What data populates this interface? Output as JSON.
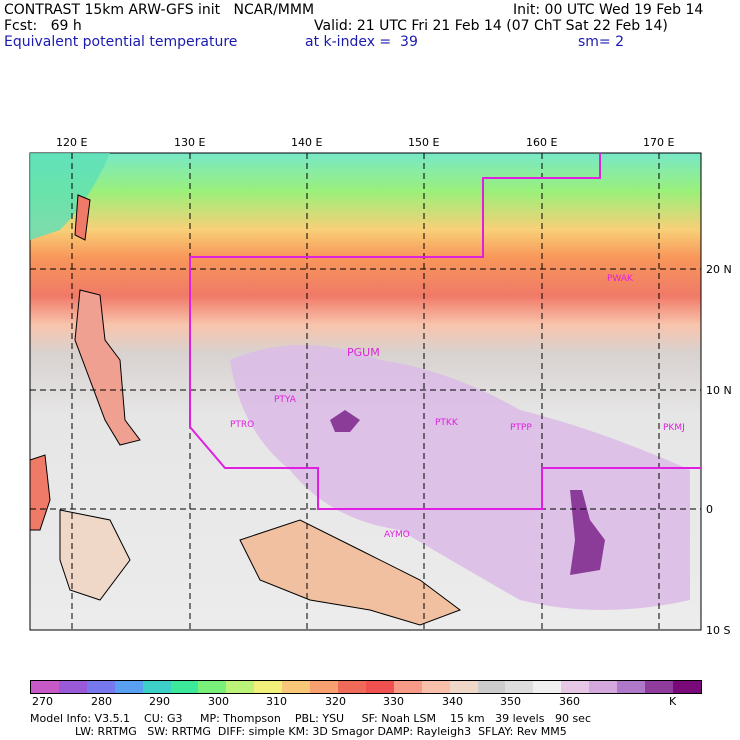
{
  "header": {
    "line1_left": "CONTRAST 15km ARW-GFS init   NCAR/MMM",
    "line1_right": "Init: 00 UTC Wed 19 Feb 14",
    "line2_left": "Fcst:   69 h",
    "line2_right": "Valid: 21 UTC Fri 21 Feb 14 (07 ChT Sat 22 Feb 14)",
    "line3_left": "Equivalent potential temperature",
    "line3_mid": "at k-index =  39",
    "line3_right": "sm= 2"
  },
  "map": {
    "lon_labels": [
      "120 E",
      "130 E",
      "140 E",
      "150 E",
      "160 E",
      "170 E"
    ],
    "lat_labels": [
      "20 N",
      "10 N",
      "0",
      "10 S"
    ],
    "stations": [
      "PWAK",
      "PGUM",
      "PTYA",
      "PTRO",
      "PTKK",
      "PTPP",
      "PKMJ",
      "AYMO"
    ]
  },
  "colorbar": {
    "labels": [
      "270",
      "280",
      "290",
      "300",
      "310",
      "320",
      "330",
      "340",
      "350",
      "360",
      "K"
    ],
    "colors": [
      "#c85ac8",
      "#9a5ad8",
      "#7878ee",
      "#5aa0f0",
      "#3cd0c8",
      "#3ce89a",
      "#78f07a",
      "#bcf47a",
      "#f0f07a",
      "#f8c878",
      "#f8a070",
      "#f06a5a",
      "#f05050",
      "#f89a88",
      "#f8c0aa",
      "#f0d8c8",
      "#cccccc",
      "#dddddd",
      "#f0f0f0",
      "#e6c8e6",
      "#d4a8dc",
      "#b078c8",
      "#903c9c",
      "#7a0a7a"
    ]
  },
  "footer": {
    "row1": "Model Info: V3.5.1    CU: G3     MP: Thompson    PBL: YSU     SF: Noah LSM    15 km   39 levels   90 sec",
    "row2": "LW: RRTMG   SW: RRTMG  DIFF: simple KM: 3D Smagor DAMP: Rayleigh3  SFLAY: Rev MM5"
  }
}
